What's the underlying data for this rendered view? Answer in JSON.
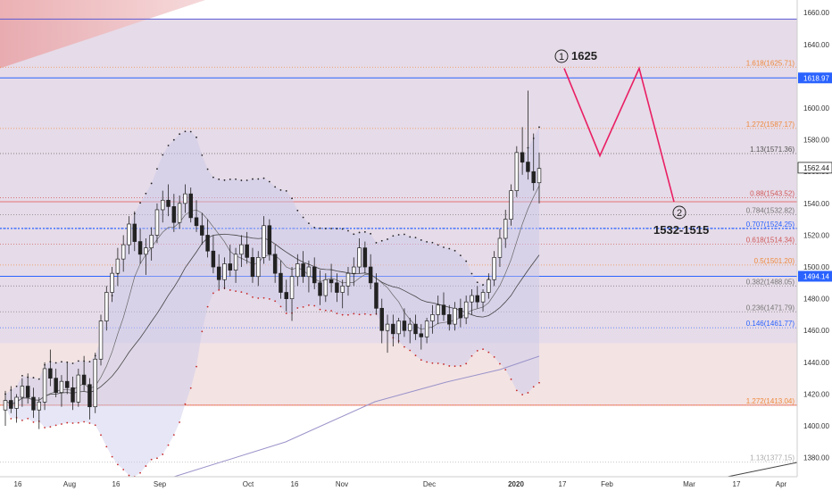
{
  "chart_data": {
    "type": "candlestick",
    "y_range": [
      1368,
      1668
    ],
    "y_ticks": [
      1380,
      1400,
      1420,
      1440,
      1460,
      1480,
      1500,
      1520,
      1540,
      1560,
      1580,
      1600,
      1620,
      1640,
      1660
    ],
    "y_tick_labels": [
      "1380.00",
      "1400.00",
      "1420.00",
      "1440.00",
      "1460.00",
      "1480.00",
      "1500.00",
      "1520.00",
      "1540.00",
      "1560.00",
      "1580.00",
      "1600.00",
      "1620.00",
      "1640.00",
      "1660.00"
    ],
    "x_labels": [
      "16",
      "Aug",
      "16",
      "Sep",
      "Oct",
      "16",
      "Nov",
      "Dec",
      "2020",
      "17",
      "Feb",
      "Mar",
      "17",
      "Apr"
    ],
    "price_badges": [
      {
        "label": "1618.97",
        "value": 1618.97,
        "color": "#2962ff"
      },
      {
        "label": "1562.44",
        "value": 1562.44,
        "color": "#ffffff"
      },
      {
        "label": "1494.14",
        "value": 1494.14,
        "color": "#2962ff"
      }
    ],
    "horizontal_lines": [
      {
        "value": 1656,
        "color": "#5b5bd6"
      },
      {
        "value": 1618.97,
        "color": "#2962ff"
      },
      {
        "value": 1494.14,
        "color": "#2962ff"
      },
      {
        "value": 1413.04,
        "color": "#e57373"
      },
      {
        "value": 1541,
        "color": "#e57373"
      },
      {
        "value": 1524.25,
        "color": "#2962ff",
        "dashed": true
      }
    ],
    "fib_levels": [
      {
        "label": "1.618(1625.71)",
        "value": 1625.71,
        "color": "#ef8a3c"
      },
      {
        "label": "1.272(1587.17)",
        "value": 1587.17,
        "color": "#ef8a3c"
      },
      {
        "label": "1.13(1571.36)",
        "value": 1571.36,
        "color": "#555555"
      },
      {
        "label": "0.88(1543.52)",
        "value": 1543.52,
        "color": "#d05a5a"
      },
      {
        "label": "0.784(1532.82)",
        "value": 1532.82,
        "color": "#777777"
      },
      {
        "label": "0.707(1524.25)",
        "value": 1524.25,
        "color": "#2962ff"
      },
      {
        "label": "0.618(1514.34)",
        "value": 1514.34,
        "color": "#d05a5a"
      },
      {
        "label": "0.5(1501.20)",
        "value": 1501.2,
        "color": "#ef8a3c"
      },
      {
        "label": "0.382(1488.05)",
        "value": 1488.05,
        "color": "#777777"
      },
      {
        "label": "0.236(1471.79)",
        "value": 1471.79,
        "color": "#777777"
      },
      {
        "label": "0.146(1461.77)",
        "value": 1461.77,
        "color": "#2962ff"
      },
      {
        "label": "1.272(1413.04)",
        "value": 1413.04,
        "color": "#ef8a3c"
      },
      {
        "label": "1.13(1377.15)",
        "value": 1377.15,
        "color": "#aaaaaa"
      }
    ],
    "candles": [
      [
        1410,
        1422,
        1400,
        1416
      ],
      [
        1416,
        1425,
        1408,
        1411
      ],
      [
        1411,
        1420,
        1402,
        1418
      ],
      [
        1418,
        1430,
        1412,
        1425
      ],
      [
        1425,
        1433,
        1414,
        1418
      ],
      [
        1418,
        1424,
        1405,
        1410
      ],
      [
        1410,
        1418,
        1398,
        1415
      ],
      [
        1415,
        1440,
        1410,
        1436
      ],
      [
        1436,
        1448,
        1425,
        1430
      ],
      [
        1430,
        1436,
        1418,
        1421
      ],
      [
        1421,
        1432,
        1412,
        1428
      ],
      [
        1428,
        1440,
        1420,
        1424
      ],
      [
        1424,
        1431,
        1410,
        1415
      ],
      [
        1415,
        1436,
        1412,
        1432
      ],
      [
        1432,
        1444,
        1422,
        1426
      ],
      [
        1426,
        1430,
        1404,
        1412
      ],
      [
        1412,
        1446,
        1408,
        1442
      ],
      [
        1442,
        1470,
        1438,
        1466
      ],
      [
        1466,
        1488,
        1460,
        1484
      ],
      [
        1484,
        1500,
        1478,
        1496
      ],
      [
        1496,
        1512,
        1488,
        1505
      ],
      [
        1505,
        1520,
        1497,
        1514
      ],
      [
        1514,
        1532,
        1508,
        1527
      ],
      [
        1527,
        1535,
        1510,
        1516
      ],
      [
        1516,
        1524,
        1502,
        1508
      ],
      [
        1508,
        1518,
        1495,
        1512
      ],
      [
        1512,
        1525,
        1504,
        1520
      ],
      [
        1520,
        1540,
        1515,
        1536
      ],
      [
        1536,
        1548,
        1528,
        1542
      ],
      [
        1542,
        1552,
        1532,
        1538
      ],
      [
        1538,
        1546,
        1522,
        1528
      ],
      [
        1528,
        1545,
        1524,
        1540
      ],
      [
        1540,
        1552,
        1534,
        1546
      ],
      [
        1546,
        1550,
        1528,
        1531
      ],
      [
        1531,
        1542,
        1522,
        1526
      ],
      [
        1526,
        1534,
        1514,
        1520
      ],
      [
        1520,
        1530,
        1506,
        1510
      ],
      [
        1510,
        1520,
        1496,
        1500
      ],
      [
        1500,
        1508,
        1486,
        1492
      ],
      [
        1492,
        1506,
        1486,
        1502
      ],
      [
        1502,
        1514,
        1494,
        1498
      ],
      [
        1498,
        1512,
        1490,
        1508
      ],
      [
        1508,
        1520,
        1500,
        1514
      ],
      [
        1514,
        1522,
        1502,
        1506
      ],
      [
        1506,
        1512,
        1490,
        1494
      ],
      [
        1494,
        1510,
        1488,
        1506
      ],
      [
        1506,
        1532,
        1502,
        1526
      ],
      [
        1526,
        1530,
        1504,
        1508
      ],
      [
        1508,
        1514,
        1490,
        1496
      ],
      [
        1496,
        1504,
        1480,
        1484
      ],
      [
        1484,
        1492,
        1472,
        1480
      ],
      [
        1480,
        1500,
        1466,
        1494
      ],
      [
        1494,
        1508,
        1488,
        1502
      ],
      [
        1502,
        1510,
        1490,
        1494
      ],
      [
        1494,
        1504,
        1484,
        1500
      ],
      [
        1500,
        1506,
        1486,
        1490
      ],
      [
        1490,
        1498,
        1476,
        1482
      ],
      [
        1482,
        1496,
        1478,
        1492
      ],
      [
        1492,
        1502,
        1484,
        1490
      ],
      [
        1490,
        1496,
        1478,
        1484
      ],
      [
        1484,
        1492,
        1474,
        1488
      ],
      [
        1488,
        1500,
        1482,
        1496
      ],
      [
        1496,
        1506,
        1488,
        1500
      ],
      [
        1500,
        1518,
        1496,
        1512
      ],
      [
        1512,
        1516,
        1496,
        1500
      ],
      [
        1500,
        1508,
        1486,
        1490
      ],
      [
        1490,
        1496,
        1470,
        1474
      ],
      [
        1474,
        1480,
        1452,
        1460
      ],
      [
        1460,
        1470,
        1446,
        1464
      ],
      [
        1464,
        1470,
        1450,
        1458
      ],
      [
        1458,
        1468,
        1452,
        1466
      ],
      [
        1466,
        1474,
        1456,
        1460
      ],
      [
        1460,
        1468,
        1452,
        1464
      ],
      [
        1464,
        1470,
        1454,
        1458
      ],
      [
        1458,
        1464,
        1448,
        1456
      ],
      [
        1456,
        1468,
        1452,
        1466
      ],
      [
        1466,
        1476,
        1458,
        1470
      ],
      [
        1470,
        1482,
        1464,
        1476
      ],
      [
        1476,
        1484,
        1466,
        1470
      ],
      [
        1470,
        1476,
        1460,
        1464
      ],
      [
        1464,
        1478,
        1460,
        1474
      ],
      [
        1474,
        1480,
        1462,
        1468
      ],
      [
        1468,
        1482,
        1464,
        1478
      ],
      [
        1478,
        1486,
        1470,
        1482
      ],
      [
        1482,
        1488,
        1474,
        1478
      ],
      [
        1478,
        1486,
        1472,
        1484
      ],
      [
        1484,
        1496,
        1480,
        1492
      ],
      [
        1492,
        1510,
        1488,
        1506
      ],
      [
        1506,
        1524,
        1500,
        1518
      ],
      [
        1518,
        1536,
        1512,
        1530
      ],
      [
        1530,
        1552,
        1526,
        1548
      ],
      [
        1548,
        1576,
        1544,
        1572
      ],
      [
        1572,
        1588,
        1558,
        1566
      ],
      [
        1566,
        1611,
        1555,
        1560
      ],
      [
        1560,
        1584,
        1548,
        1553
      ],
      [
        1553,
        1572,
        1540,
        1562
      ]
    ],
    "annotations": [
      {
        "label": "1",
        "text": "1625"
      },
      {
        "label": "2",
        "text": "1532-1515"
      }
    ],
    "projection": [
      1625,
      1570,
      1625,
      1541
    ],
    "colors": {
      "candle_up": "#ffffff",
      "candle_down": "#222222",
      "background_band": "#e8dce6",
      "projection": "#e91e63"
    }
  }
}
